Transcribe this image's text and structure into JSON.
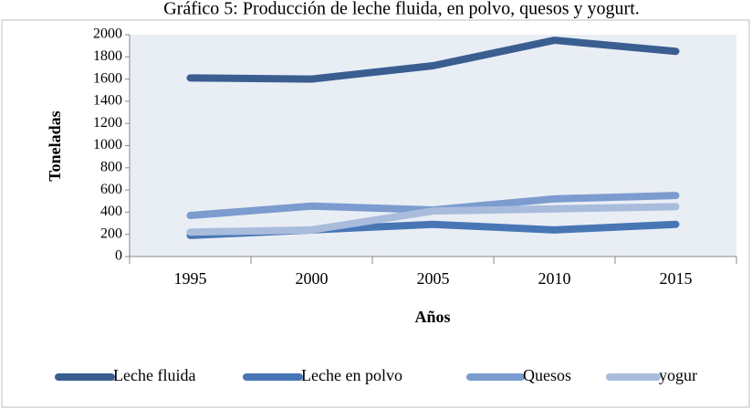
{
  "chart_data": {
    "type": "line",
    "title": "Gráfico 5: Producción de leche fluida, en polvo, quesos y yogurt.",
    "x_label": "Años",
    "y_label": "Toneladas",
    "categories": [
      "1995",
      "2000",
      "2005",
      "2010",
      "2015"
    ],
    "series": [
      {
        "name": "Leche fluida",
        "color": "#3b5e91",
        "values": [
          1610,
          1600,
          1720,
          1950,
          1850
        ]
      },
      {
        "name": "Leche en polvo",
        "color": "#4876b5",
        "values": [
          190,
          240,
          290,
          240,
          290
        ]
      },
      {
        "name": "Quesos",
        "color": "#7c9ccf",
        "values": [
          370,
          455,
          420,
          520,
          550
        ]
      },
      {
        "name": "yogur",
        "color": "#a9bcdc",
        "values": [
          220,
          240,
          410,
          430,
          450
        ]
      }
    ],
    "ylim": [
      0,
      2000
    ],
    "yticks": [
      0,
      200,
      400,
      600,
      800,
      1000,
      1200,
      1400,
      1600,
      1800,
      2000
    ],
    "legend": "bottom"
  }
}
